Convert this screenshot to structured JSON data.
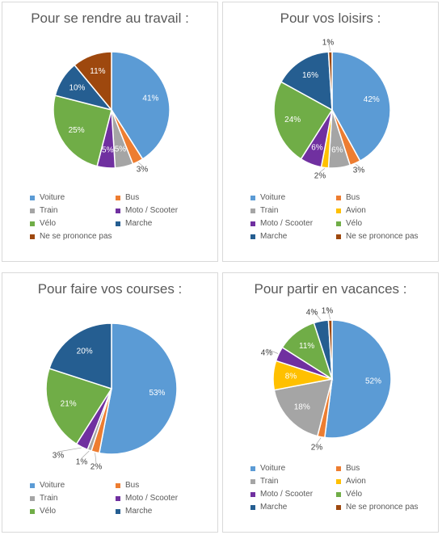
{
  "chart_data": [
    {
      "type": "pie",
      "title": "Pour se rendre au travail :",
      "categories": [
        "Voiture",
        "Bus",
        "Train",
        "Moto / Scooter",
        "Vélo",
        "Marche",
        "Ne se prononce pas"
      ],
      "values": [
        41,
        3,
        5,
        5,
        25,
        10,
        11
      ],
      "labels": [
        "41%",
        "3%",
        "5%",
        "5%",
        "25%",
        "10%",
        "11%"
      ],
      "colors": [
        "#5B9BD5",
        "#ED7D31",
        "#A5A5A5",
        "#7030A0",
        "#70AD47",
        "#255E91",
        "#9E480E"
      ],
      "legend": "bottom"
    },
    {
      "type": "pie",
      "title": "Pour vos loisirs :",
      "categories": [
        "Voiture",
        "Bus",
        "Train",
        "Avion",
        "Moto / Scooter",
        "Vélo",
        "Marche",
        "Ne se prononce pas"
      ],
      "values": [
        42,
        3,
        6,
        2,
        6,
        24,
        16,
        1
      ],
      "labels": [
        "42%",
        "3%",
        "6%",
        "2%",
        "6%",
        "24%",
        "16%",
        "1%"
      ],
      "colors": [
        "#5B9BD5",
        "#ED7D31",
        "#A5A5A5",
        "#FFC000",
        "#7030A0",
        "#70AD47",
        "#255E91",
        "#9E480E"
      ],
      "legend": "bottom"
    },
    {
      "type": "pie",
      "title": "Pour faire vos courses :",
      "categories": [
        "Voiture",
        "Bus",
        "Train",
        "Moto / Scooter",
        "Vélo",
        "Marche"
      ],
      "values": [
        53,
        2,
        1,
        3,
        21,
        20
      ],
      "labels": [
        "53%",
        "2%",
        "1%",
        "3%",
        "21%",
        "20%"
      ],
      "colors": [
        "#5B9BD5",
        "#ED7D31",
        "#A5A5A5",
        "#7030A0",
        "#70AD47",
        "#255E91"
      ],
      "legend": "bottom"
    },
    {
      "type": "pie",
      "title": "Pour partir en vacances :",
      "categories": [
        "Voiture",
        "Bus",
        "Train",
        "Avion",
        "Moto / Scooter",
        "Vélo",
        "Marche",
        "Ne se prononce pas"
      ],
      "values": [
        52,
        2,
        18,
        8,
        4,
        11,
        4,
        1
      ],
      "labels": [
        "52%",
        "2%",
        "18%",
        "8%",
        "4%",
        "11%",
        "4%",
        "1%"
      ],
      "colors": [
        "#5B9BD5",
        "#ED7D31",
        "#A5A5A5",
        "#FFC000",
        "#7030A0",
        "#70AD47",
        "#255E91",
        "#9E480E"
      ],
      "legend": "bottom"
    }
  ]
}
